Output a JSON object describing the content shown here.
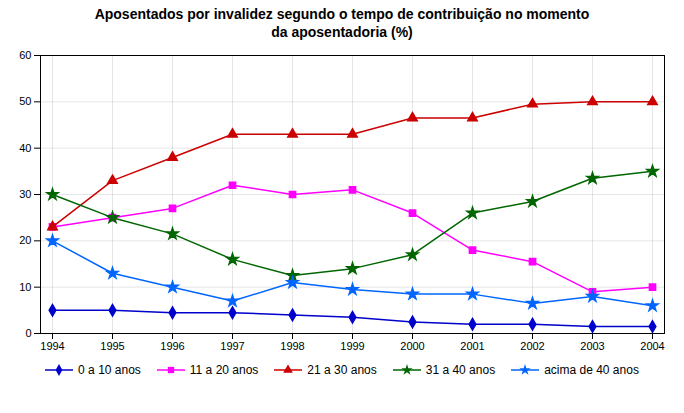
{
  "chart_data": {
    "type": "line",
    "title": "Aposentados por invalidez segundo o tempo de contribuição no momento\nda aposentadoria (%)",
    "x": [
      1994,
      1995,
      1996,
      1997,
      1998,
      1999,
      2000,
      2001,
      2002,
      2003,
      2004
    ],
    "series": [
      {
        "name": "0 a 10 anos",
        "color": "#0000CC",
        "marker": "diamond",
        "values": [
          5,
          5,
          4.5,
          4.5,
          4,
          3.5,
          2.5,
          2,
          2,
          1.5,
          1.5
        ]
      },
      {
        "name": "11 a 20 anos",
        "color": "#FF00FF",
        "marker": "square",
        "values": [
          23,
          25,
          27,
          32,
          30,
          31,
          26,
          18,
          15.5,
          9,
          10
        ]
      },
      {
        "name": "21 a 30 anos",
        "color": "#CC0000",
        "marker": "triangle",
        "values": [
          23,
          33,
          38,
          43,
          43,
          43,
          46.5,
          46.5,
          49.5,
          50,
          50
        ]
      },
      {
        "name": "31 a 40 anos",
        "color": "#006600",
        "marker": "star",
        "values": [
          30,
          25,
          21.5,
          16,
          12.5,
          14,
          17,
          26,
          28.5,
          33.5,
          35
        ]
      },
      {
        "name": "acima de 40 anos",
        "color": "#0066FF",
        "marker": "star",
        "values": [
          20,
          13,
          10,
          7,
          11,
          9.5,
          8.5,
          8.5,
          6.5,
          8,
          6
        ]
      }
    ],
    "xlim": [
      1993.8,
      2004.2
    ],
    "xticks": [
      1994,
      1995,
      1996,
      1997,
      1998,
      1999,
      2000,
      2001,
      2002,
      2003,
      2004
    ],
    "ylim": [
      0,
      60
    ],
    "yticks": [
      0,
      10,
      20,
      30,
      40,
      50,
      60
    ],
    "grid": true,
    "legend": "bottom"
  }
}
